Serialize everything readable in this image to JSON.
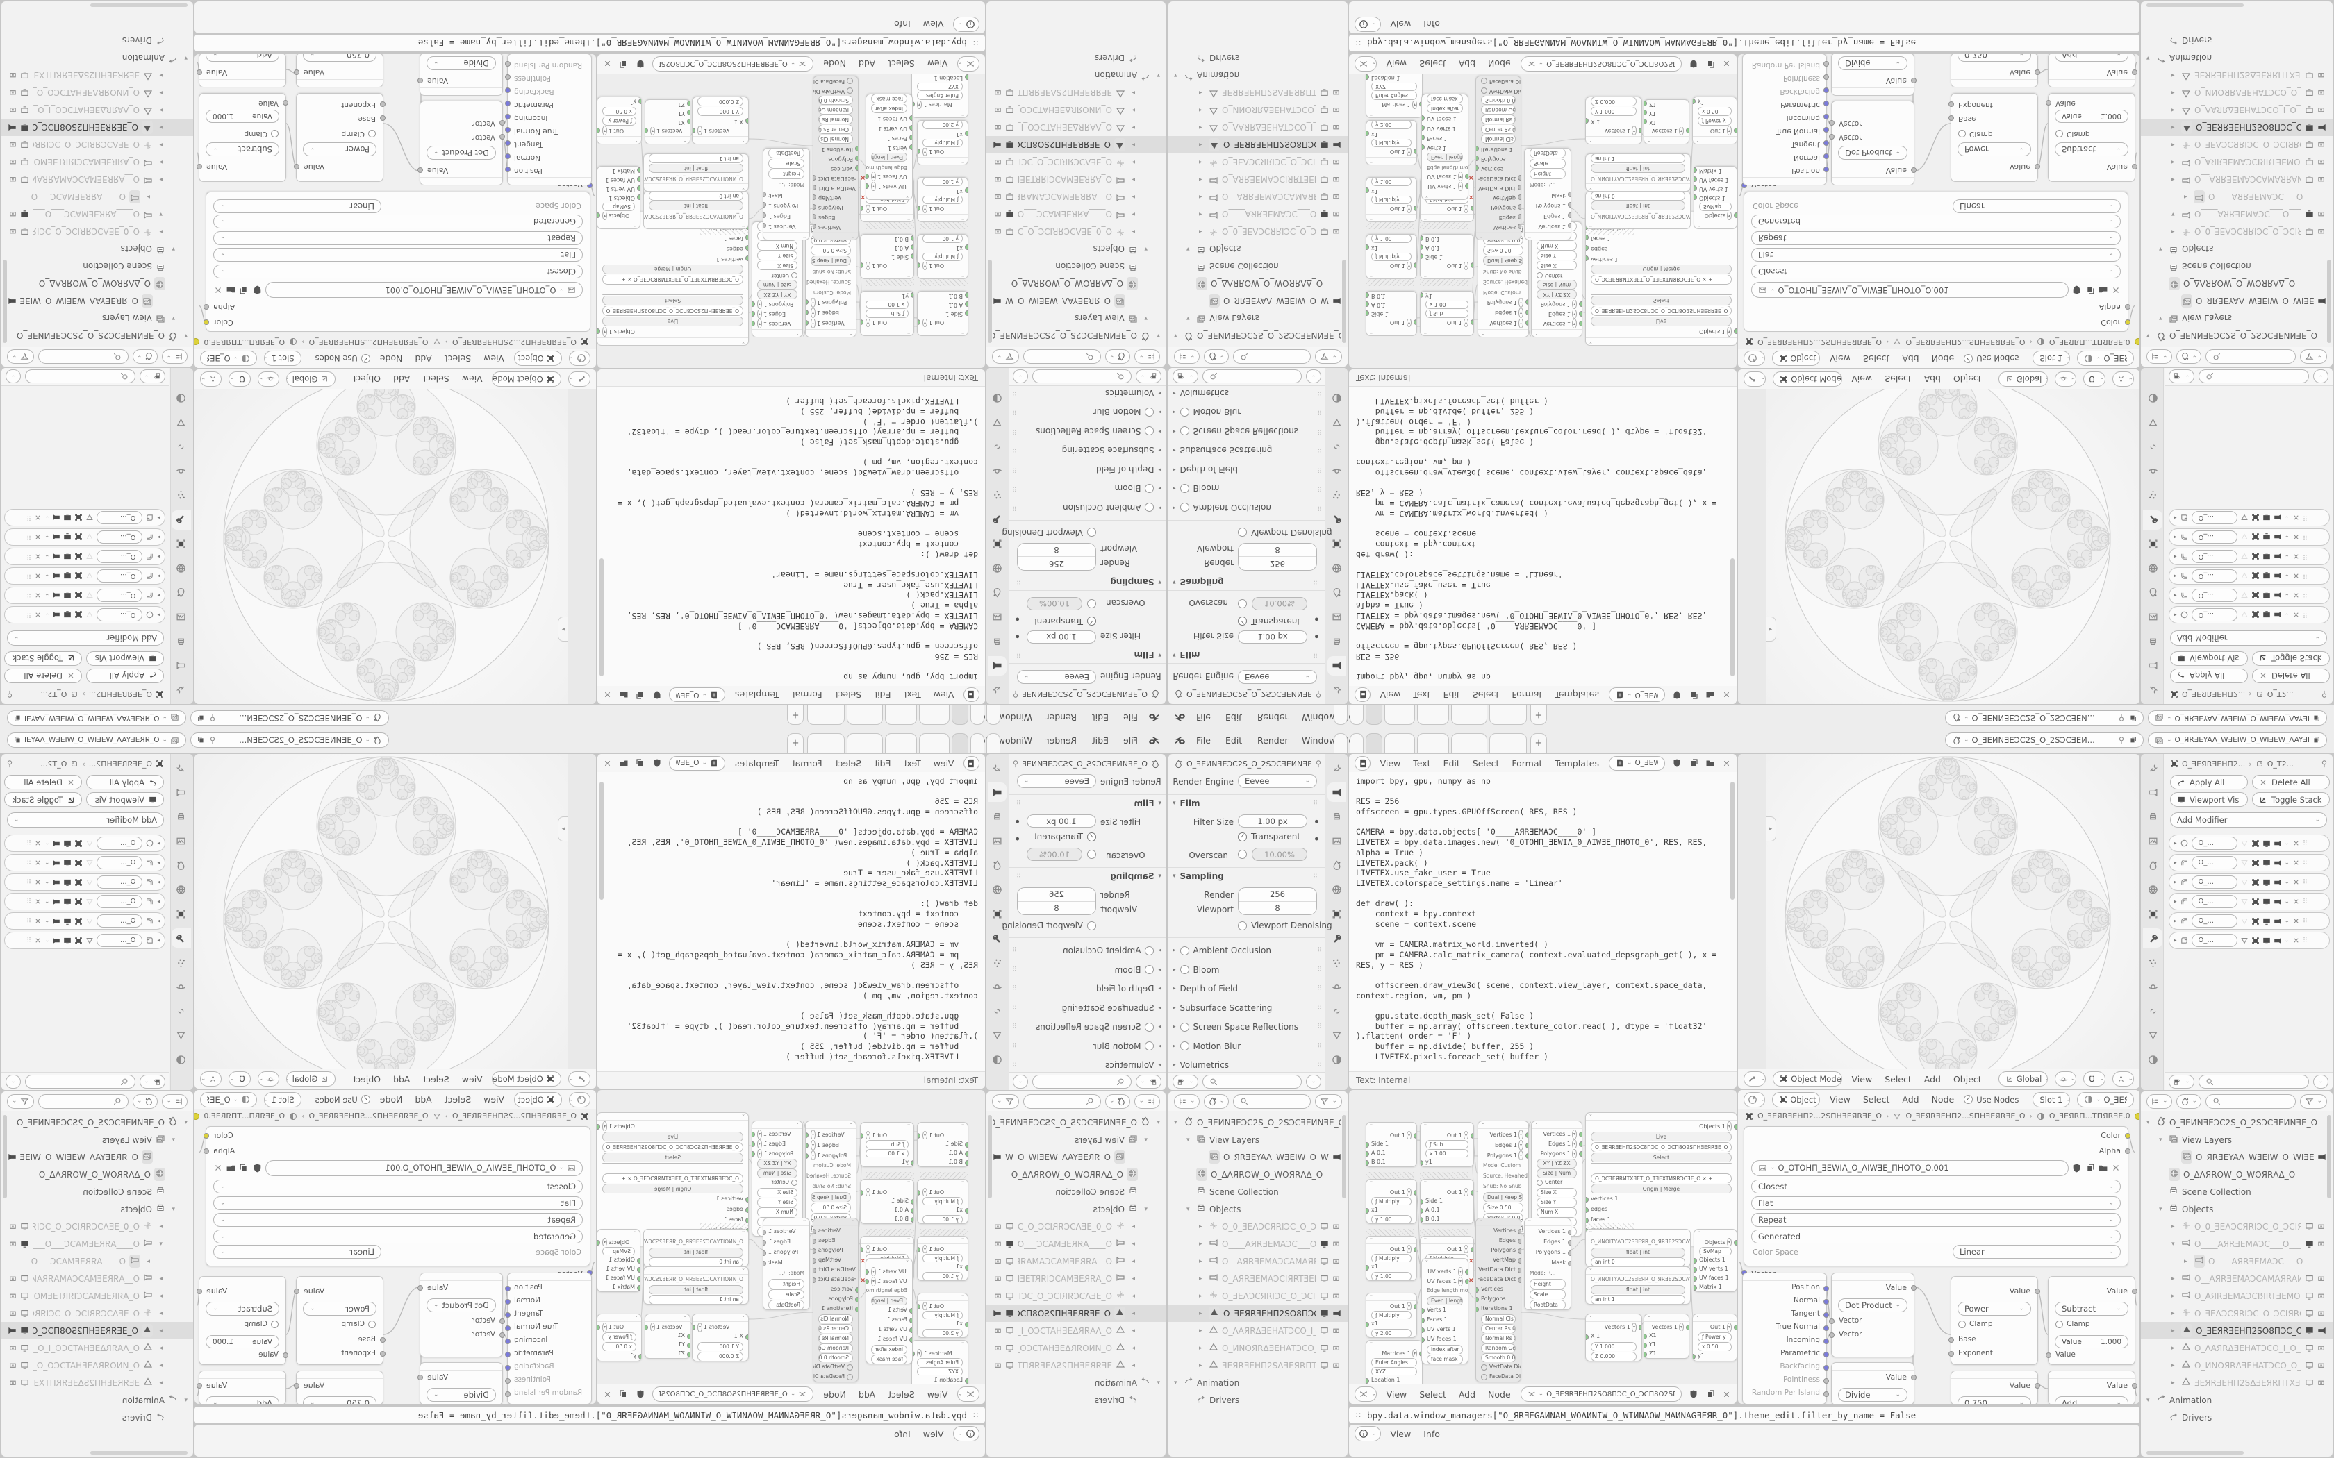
{
  "window": {
    "menus": [
      "File",
      "Edit",
      "Render",
      "Window",
      "Help"
    ],
    "workspace_tabs": {
      "count": 7,
      "active_index": 2,
      "add_label": "+"
    },
    "scene": "O_ƎEИNƎEƆC2S_O_2SƆCƎEИ...",
    "view_layer": "O_ЯRƎEYAΛ_WƎEIW_O_WIƎEW_ΛAYƎEЯR_O"
  },
  "properties_render": {
    "scene_breadcrumb": "O_ƎEИNƎEƆC2S_O_2SƆCƎEИNƎE_O",
    "render_engine_label": "Render Engine",
    "render_engine": "Eevee",
    "film": {
      "title": "Film",
      "filter_size_label": "Filter Size",
      "filter_size": "1.00 px",
      "transparent": "Transparent",
      "overscan_label": "Overscan",
      "overscan": "10.00%"
    },
    "sampling": {
      "title": "Sampling",
      "render_label": "Render",
      "render": "256",
      "viewport_label": "Viewport",
      "viewport": "8",
      "denoising": "Viewport Denoising"
    },
    "sections": [
      "Ambient Occlusion",
      "Bloom",
      "Depth of Field",
      "Subsurface Scattering",
      "Screen Space Reflections",
      "Motion Blur",
      "Volumetrics"
    ],
    "sections_with_checkbox": [
      true,
      true,
      false,
      false,
      true,
      true,
      false
    ]
  },
  "text_editor": {
    "menus": [
      "View",
      "Text",
      "Edit",
      "Select",
      "Format",
      "Templates"
    ],
    "datablock": "O_ƎEWIΛ_O_ΛIWƎE_O",
    "footer": "Text: Internal",
    "code": [
      "import bpy, gpu, numpy as np",
      "",
      "RES = 256",
      "offscreen = gpu.types.GPUOffScreen( RES, RES )",
      "",
      "CAMERA = bpy.data.objects[ '0____AЯRƎEMAƆC____0' ]",
      "LIVETEX = bpy.data.images.new( '0_OTOHΠ_ƎEWIΛ_0_ΛIWƎE_ΠHOTO_0', RES, RES, alpha = True )",
      "LIVETEX.pack( )",
      "LIVETEX.use_fake_user = True",
      "LIVETEX.colorspace_settings.name = 'Linear'",
      "",
      "def draw( ):",
      "    context = bpy.context",
      "    scene = context.scene",
      "",
      "    vm = CAMERA.matrix_world.inverted( )",
      "    pm = CAMERA.calc_matrix_camera( context.evaluated_depsgraph_get( ), x = RES, y = RES )",
      "",
      "    offscreen.draw_view3d( scene, context.view_layer, context.space_data, context.region, vm, pm )",
      "",
      "    gpu.state.depth_mask_set( False )",
      "    buffer = np.array( offscreen.texture_color.read( ), dtype = 'float32' ).flatten( order = 'F' )",
      "    buffer = np.divide( buffer, 255 )",
      "    LIVETEX.pixels.foreach_set( buffer )",
      "",
      "bpy.types.SpaceView3D.draw_handler_add( draw, ( ), 'WINDOW', 'POST_PIXEL' )"
    ]
  },
  "viewport_3d": {
    "mode": "Object Mode",
    "menus": [
      "View",
      "Select",
      "Add",
      "Object"
    ],
    "orientation": "Global"
  },
  "shader_editor": {
    "context_pill": "Object",
    "menus": [
      "View",
      "Select",
      "Add",
      "Node"
    ],
    "use_nodes": "Use Nodes",
    "slot": "Slot 1",
    "material": "O_ƎEЯRΠ",
    "breadcrumb": [
      "O_ƎEЯRƎEHΠ2...2SΠHƎEЯRƎE_O",
      "O_ƎEЯRƎEHΠ2...SΠHƎEЯRƎE_O",
      "O_ƎEЯRΠ...TΠЯRƎE.0"
    ],
    "image_node": {
      "image": "O_OTOHΠ_ƎEWIΛ_O_ΛIWƎE_ΠHOTO_O.001",
      "interpolation": "Closest",
      "projection": "Flat",
      "extension": "Repeat",
      "source": "Generated",
      "color_space_label": "Color Space",
      "color_space": "Linear",
      "input": "Vector",
      "outputs": [
        "Color",
        "Alpha"
      ]
    },
    "geometry_outputs": [
      "Position",
      "Normal",
      "Tangent",
      "True Normal",
      "Incoming",
      "Parametric",
      "Backfacing",
      "Pointiness",
      "Random Per Island"
    ],
    "math_nodes": [
      {
        "op": "Dot Product",
        "out": "Value",
        "rows": [
          "Vector",
          "Vector"
        ]
      },
      {
        "op": "Divide",
        "out": "Value",
        "clamp": "Clamp",
        "rows": []
      },
      {
        "op": "Power",
        "out": "Value",
        "clamp": "Clamp",
        "rows": [
          "Base",
          "Exponent"
        ]
      },
      {
        "op": "Subtract",
        "out": "Value",
        "clamp": "Clamp",
        "field": "Value|1.000",
        "rows": [
          "Value"
        ]
      },
      {
        "op": "0.750",
        "out": "Value",
        "rows": []
      },
      {
        "op": "Add",
        "out": "Value",
        "rows": []
      }
    ]
  },
  "node_editor_sv": {
    "menus": [
      "View",
      "Select",
      "Add",
      "Node"
    ],
    "tree_name": "O_ƎEЯRƎEHΠ2SO8ΠƆC_O_ƆCΠ8O2SΠHƎEЯRƎE_O",
    "nodes": [
      {
        "rows": [
          [
            "outsel",
            "Out 1"
          ],
          [
            "sock",
            "Side 1"
          ],
          [
            "sock",
            "A 0.1"
          ],
          [
            "sock",
            "B 0.1"
          ]
        ]
      },
      {
        "rows": [
          [
            "outsel",
            "Out 1"
          ],
          [
            "pill",
            "ƒ Sub"
          ],
          [
            "field",
            "x  1.00"
          ],
          [
            "sock",
            "y1"
          ]
        ]
      },
      {
        "rows": [
          [
            "outsel",
            "Out 1"
          ],
          [
            "pill",
            "ƒ Multiply"
          ],
          [
            "sock",
            "x1"
          ],
          [
            "field",
            "y  1.00"
          ]
        ]
      },
      {
        "rows": [
          [
            "outsel",
            "Out 1"
          ],
          [
            "sock",
            "Side 1"
          ],
          [
            "sock",
            "A 0.1"
          ],
          [
            "sock",
            "B 0.1"
          ]
        ]
      },
      {
        "rows": [
          [
            "outsel",
            "Vertices 1"
          ],
          [
            "outsel",
            "Edges 1"
          ],
          [
            "outsel",
            "Polygons 1"
          ],
          [
            "kv",
            "Mode:  Custom"
          ],
          [
            "kv",
            "Source:  Hexahedron"
          ],
          [
            "kv",
            "Snub:  No Snub"
          ],
          [
            "btn2",
            "Dual | Keep Size"
          ],
          [
            "field",
            "Size  0.50"
          ],
          [
            "field",
            "Vertex Tr  0.000"
          ],
          [
            "field",
            "Edge Tr  0.000"
          ]
        ]
      },
      {
        "rows": [
          [
            "outsel",
            "Vertices 1"
          ],
          [
            "outsel",
            "Edges 1"
          ],
          [
            "outsel",
            "Polygons 1"
          ],
          [
            "btn2",
            "XY | YZ  ZX"
          ],
          [
            "btn2",
            "Size | Num"
          ],
          [
            "check",
            "Center"
          ],
          [
            "field",
            "Size X"
          ],
          [
            "field",
            "Size Y"
          ],
          [
            "field",
            "Num X"
          ],
          [
            "field",
            "Num Y"
          ],
          [
            "field",
            "Matrix"
          ]
        ]
      },
      {
        "gray": true,
        "rows": [
          [
            "sockR",
            "Vertices"
          ],
          [
            "sockR",
            "Edges"
          ],
          [
            "sockR",
            "Polygons"
          ],
          [
            "sockR",
            "VertMap"
          ],
          [
            "sockR",
            "VertData Dict"
          ],
          [
            "sockR",
            "FaceData Dict"
          ],
          [
            "sock",
            "Vertices"
          ],
          [
            "sock",
            "Polygons"
          ],
          [
            "sock",
            "Iterations 1"
          ],
          [
            "field",
            "Normal Cls  0.00"
          ],
          [
            "field",
            "Center Rs  0.00"
          ],
          [
            "field",
            "Normal Rs  0.00"
          ],
          [
            "field",
            "Random Geo  0"
          ],
          [
            "field",
            "Smooth  0.00"
          ],
          [
            "check",
            "VertData Dict"
          ],
          [
            "check",
            "FaceData Dict"
          ]
        ]
      },
      {
        "rows": [
          [
            "sockR",
            "Vertices 1"
          ],
          [
            "sockR",
            "Edges 1"
          ],
          [
            "sockR",
            "Polygons 1"
          ],
          [
            "sockR",
            "Mask"
          ],
          [
            "kv",
            "Mode:  R..."
          ],
          [
            "field",
            "Height"
          ],
          [
            "field",
            "Scale"
          ],
          [
            "field",
            "RootData"
          ]
        ]
      },
      {
        "rows": [
          [
            "outsel",
            "Out 1"
          ],
          [
            "pill",
            "ƒ Multiply"
          ],
          [
            "sock",
            "x1"
          ],
          [
            "field",
            "y  1.00"
          ]
        ]
      },
      {
        "rows": [
          [
            "outsel",
            "Out 1"
          ],
          [
            "pill",
            "ƒ Multiply"
          ],
          [
            "sock",
            "x1"
          ],
          [
            "field",
            "y  1.00"
          ]
        ]
      },
      {
        "rows": [
          [
            "outsel",
            "Out 1"
          ],
          [
            "pill",
            "ƒ Multiply"
          ],
          [
            "sock",
            "x1"
          ],
          [
            "field",
            "y  2.00"
          ]
        ]
      },
      {
        "rows": [
          [
            "outsel",
            "Matrices 1"
          ],
          [
            "pill",
            "Euler Angles"
          ],
          [
            "pill",
            "XYZ"
          ],
          [
            "sock",
            "Location 1"
          ],
          [
            "sock",
            "Scale 1"
          ],
          [
            "field",
            "Angle X  0.000"
          ],
          [
            "field",
            "Angle Y  0.000"
          ],
          [
            "field",
            "Angle Z  0.000"
          ]
        ]
      },
      {
        "rows": [
          [
            "outsel",
            "UV verts 1"
          ],
          [
            "outsel",
            "UV faces 1"
          ],
          [
            "kv",
            "Edge length mode:"
          ],
          [
            "btn2",
            "Even | length  Average"
          ],
          [
            "sock",
            "Verts 1"
          ],
          [
            "sock",
            "Faces 1"
          ],
          [
            "sock",
            "UV verts 1"
          ],
          [
            "sock",
            "UV faces 1"
          ],
          [
            "field",
            "index after 1   All"
          ],
          [
            "field",
            "face mask"
          ]
        ]
      },
      {
        "big": true,
        "rows": [
          [
            "outsel",
            "Objects 1"
          ],
          [
            "btn",
            "Live"
          ],
          [
            "field",
            "O_ƎEЯRƎEHΠ2SƆC8ΠƆC_O_ƆCΠ8O2SΠHƎEЯRƎE_O"
          ],
          [
            "btn",
            "Select"
          ],
          [
            "field",
            ""
          ],
          [
            "field",
            "O_ƆCƎEЯRИTXƎET_O_TƎEXTИЯRƆCƎE_O   ×  +"
          ],
          [
            "btn2",
            "Origin | Merge"
          ],
          [
            "sock",
            "vertices 1"
          ],
          [
            "sock",
            "edges"
          ],
          [
            "sock",
            "faces 1"
          ],
          [
            "sock",
            "material_idx"
          ],
          [
            "sock",
            "matrix"
          ]
        ]
      },
      {
        "rows": [
          [
            "kv",
            "O_ИNOITYΛƆC2SƎEЯR_O_ЯRƎE2SƆCΛYTIOИN_O"
          ],
          [
            "btn2",
            "float | int"
          ],
          [
            "field",
            "an int   0"
          ]
        ]
      },
      {
        "rows": [
          [
            "kv",
            "O_ИNOITYΛƆC2SƎEЯR_O_ЯRƎE2SƆCΛYTIOИN_O"
          ],
          [
            "btn2",
            "float | int"
          ],
          [
            "field",
            "an int   1"
          ]
        ]
      },
      {
        "rows": [
          [
            "outsel",
            "Objects"
          ],
          [
            "pill",
            "SVMap"
          ],
          [
            "sock",
            "Objects 1"
          ],
          [
            "sock",
            "UV verts 1"
          ],
          [
            "sock",
            "UV faces 1"
          ],
          [
            "sock",
            "Matrix 1"
          ]
        ]
      },
      {
        "rows": [
          [
            "outsel",
            "Vectors 1"
          ],
          [
            "sock",
            "X 1"
          ],
          [
            "field",
            "Y  1.000"
          ],
          [
            "field",
            "Z  0.000"
          ]
        ]
      },
      {
        "rows": [
          [
            "outsel",
            "Vectors 1"
          ],
          [
            "sock",
            "X1"
          ],
          [
            "sock",
            "Y1"
          ],
          [
            "sock",
            "Z1"
          ]
        ]
      },
      {
        "rows": [
          [
            "outsel",
            "Out 1"
          ],
          [
            "pill",
            "ƒ Power y"
          ],
          [
            "field",
            "x  0.50"
          ],
          [
            "sock",
            "y1"
          ]
        ]
      }
    ]
  },
  "outliner": {
    "rows": [
      {
        "label": "O_ƎEИNƎEƆC2S_O_2SƆCƎEИNƎE_O",
        "icon": "scene",
        "lvl": 0,
        "exp": true
      },
      {
        "label": "View Layers",
        "icon": "vlayer",
        "lvl": 1,
        "exp": true
      },
      {
        "label": "O_ЯRƎEYAΛ_WƎEIW_O_WIƎEW_",
        "icon": "vlayer",
        "lvl": 2,
        "cam": "solid",
        "boxed": true
      },
      {
        "label": "O_ΔΛЯROW_O_WOЯRΛΔ_O",
        "icon": "world",
        "lvl": 1,
        "boxed": true
      },
      {
        "label": "Scene Collection",
        "icon": "collection",
        "lvl": 1
      },
      {
        "label": "Objects",
        "icon": "collection",
        "lvl": 1,
        "exp": true
      },
      {
        "label": "O_0_ƎEΛƆCЯRIƆC_O_ƆCIЯROƆΛ",
        "icon": "empty",
        "lvl": 2,
        "dim": true,
        "mon": true,
        "cam": "off"
      },
      {
        "label": "O____AЯRƎEMAƆC___O___ƆC",
        "icon": "camera",
        "lvl": 2,
        "dim": true,
        "mon": "solid",
        "cam": "off",
        "exp_right": true
      },
      {
        "label": "O____AЯRƎEMAƆC___O__",
        "icon": "camera",
        "lvl": 3,
        "dim": true,
        "right_only": true,
        "boxed": true
      },
      {
        "label": "O__AЯRƎEMAƆCAMAЯRAИNAΠ_",
        "icon": "camera",
        "lvl": 2,
        "dim": true,
        "mon": true,
        "cam": "off"
      },
      {
        "label": "O_AЯRƎEMAƆCIЯRTƎEMO2SI_O",
        "icon": "camera",
        "lvl": 2,
        "dim": true,
        "mon": true,
        "cam": "off"
      },
      {
        "label": "O_ƎEΛƆCЯRIƆC_O_ƆCIЯROΛƎE",
        "icon": "empty",
        "lvl": 2,
        "dim": true,
        "mon": true,
        "cam": "off"
      },
      {
        "label": "O_ƎEЯRƎEHΠ2SO8ΠƆC_O_ƆCΠ",
        "icon": "mesh-solid",
        "lvl": 2,
        "sel": true,
        "mon": "solid",
        "cam": "solid",
        "boxed": true
      },
      {
        "label": "O_ΛAЯRΔƎEHATƆCO_I_O_I_OƆC",
        "icon": "mesh",
        "lvl": 2,
        "dim": true,
        "mon": true,
        "cam": "off"
      },
      {
        "label": "O_ИNOЯRΔƎEHATƆCO_O_OƆCT.",
        "icon": "mesh",
        "lvl": 2,
        "dim": true,
        "mon": true,
        "cam": "off"
      },
      {
        "label": "ƎEЯRƎEHΠ2SΔƎEЯRΠTXƎETOT:",
        "icon": "mesh",
        "lvl": 2,
        "dim": true,
        "mon": true,
        "cam": "off"
      },
      {
        "label": "Animation",
        "icon": "anim",
        "lvl": 0,
        "exp": true
      },
      {
        "label": "Drivers",
        "icon": "driver",
        "lvl": 1
      }
    ]
  },
  "properties_modifiers": {
    "breadcrumb_object": "O_ƎEЯRƎEHΠ2...",
    "breadcrumb_data": "O_T2...",
    "buttons": [
      "Apply All",
      "Delete All",
      "Viewport Vis",
      "Toggle Stack"
    ],
    "add_modifier": "Add Modifier",
    "rows": [
      {
        "name": "O_...",
        "type": "circle"
      },
      {
        "name": "O_...",
        "type": "bevel"
      },
      {
        "name": "O_...",
        "type": "bevel"
      },
      {
        "name": "O_...",
        "type": "bevel"
      },
      {
        "name": "O_...",
        "type": "bevel"
      },
      {
        "name": "O_...",
        "type": "box"
      }
    ]
  },
  "info_editor": {
    "log": "bpy.data.window_managers[\"O_ЯRƎEGAИNAM_WOΔИNIW_O_WIИNΔOW_MAИNAGƎEЯR_0\"].theme_edit.filter_by_name = False",
    "menus": [
      "View",
      "Info"
    ]
  },
  "colors": {
    "gap": "#c6c6c6",
    "area": "#f2f2f2",
    "header": "#f6f6f6",
    "widget": "#fdfdfd",
    "border": "#b7b7b7",
    "text": "#4e4e4e",
    "selected_row": "#dddddd",
    "socket_green": "#8fcb8f",
    "socket_orange": "#e2a13c",
    "socket_purple": "#7a7ada",
    "socket_cyan": "#57c4d2",
    "socket_yellow": "#ddd23a",
    "socket_gray": "#c0c0c0",
    "fractal_stroke": "#d4d4d4"
  }
}
